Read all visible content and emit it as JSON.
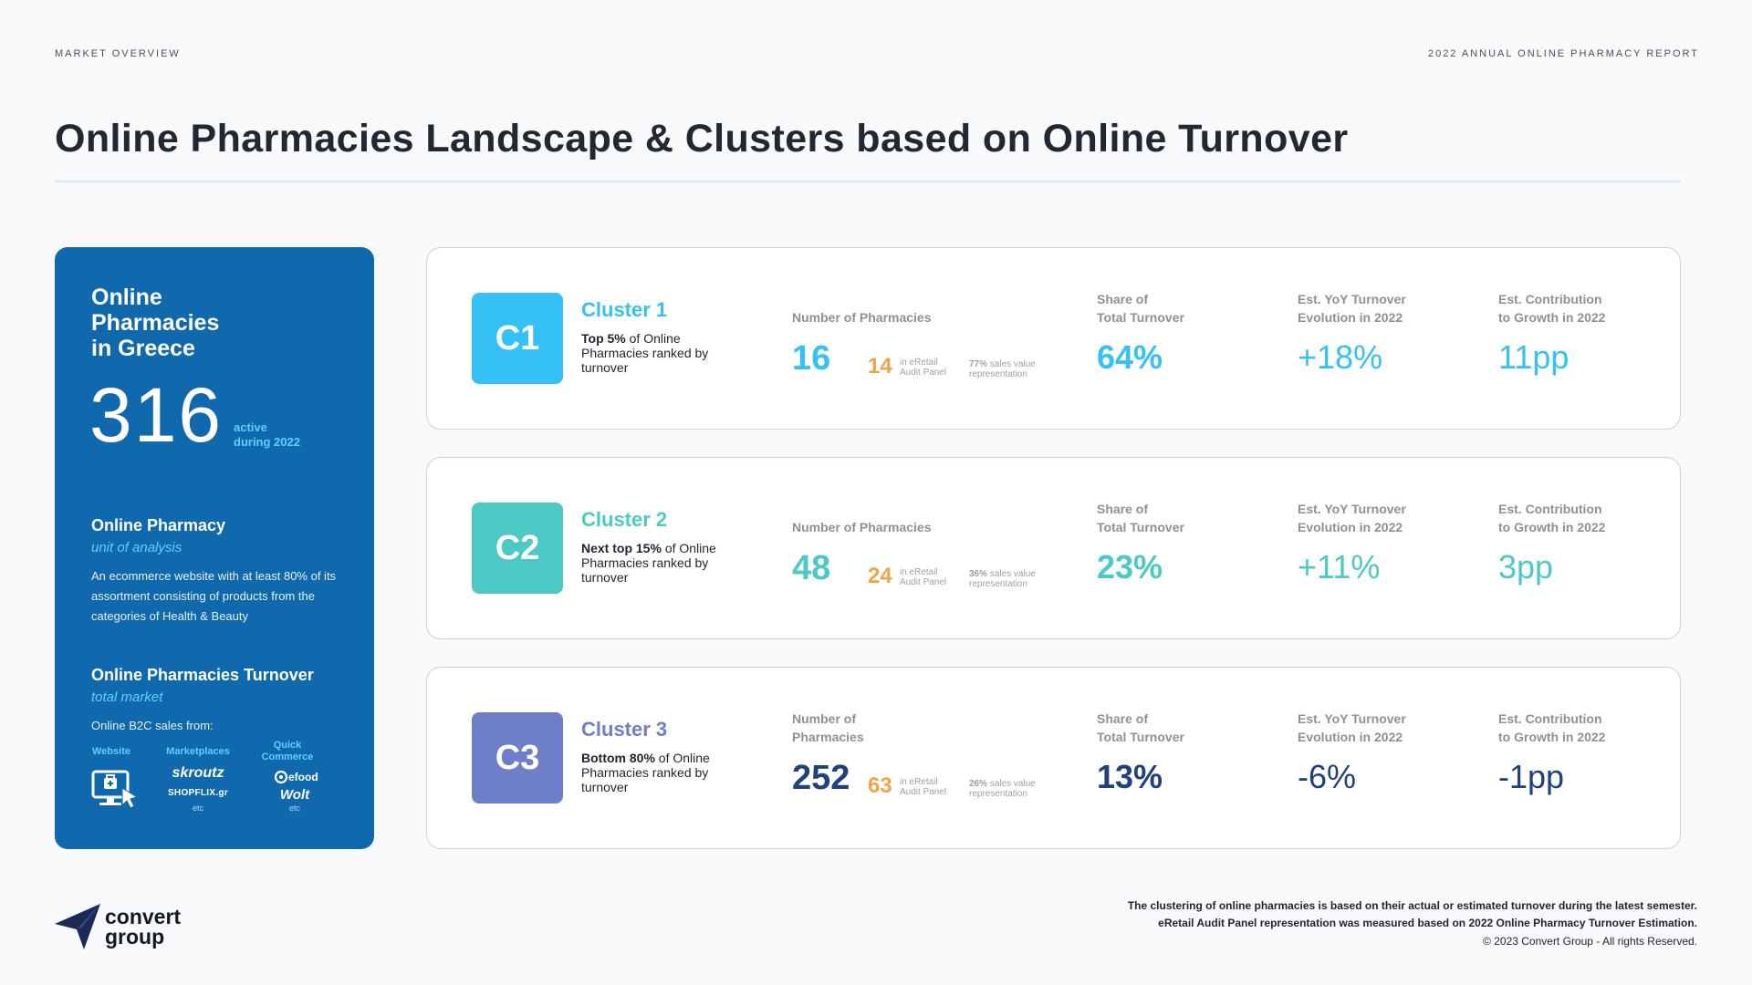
{
  "header": {
    "section": "MARKET OVERVIEW",
    "report": "2022 ANNUAL ONLINE PHARMACY REPORT",
    "title": "Online Pharmacies Landscape & Clusters based on Online Turnover"
  },
  "panel": {
    "heading": [
      "Online",
      "Pharmacies",
      "in Greece"
    ],
    "count": "316",
    "active_label": [
      "active",
      "during 2022"
    ],
    "unit_title": "Online Pharmacy",
    "unit_sub": "unit of analysis",
    "unit_desc": "An ecommerce website with at least 80% of its assortment consisting of products from the categories of Health & Beauty",
    "turnover_title": "Online Pharmacies Turnover",
    "turnover_sub": "total market",
    "b2c": "Online B2C sales from:",
    "channels": {
      "website": "Website",
      "marketplaces": "Marketplaces",
      "quick": [
        "Quick",
        "Commerce"
      ]
    },
    "brands": {
      "skroutz": "skroutz",
      "shopflix": "SHOPFLIX.gr",
      "efood": "efood",
      "wolt": "Wolt",
      "etc": "etc"
    }
  },
  "labels": {
    "share": [
      "Share of",
      "Total Turnover"
    ],
    "yoy": [
      "Est. YoY Turnover",
      "Evolution in 2022"
    ],
    "contrib": [
      "Est. Contribution",
      "to Growth in 2022"
    ],
    "panel_tag": [
      "in eRetail",
      "Audit Panel"
    ],
    "rep_suffix": "sales value representation",
    "num_one_line": "Number of Pharmacies",
    "num_two_line": [
      "Number of",
      "Pharmacies"
    ]
  },
  "clusters": [
    {
      "badge": "C1",
      "name": "Cluster 1",
      "desc_bold": "Top 5%",
      "desc_rest": "of Online Pharmacies ranked by turnover",
      "pharmacies": "16",
      "panel": "14",
      "rep": "77%",
      "share": "64%",
      "yoy": "+18%",
      "contrib": "11pp",
      "color": "#35c1f6"
    },
    {
      "badge": "C2",
      "name": "Cluster 2",
      "desc_bold": "Next top 15%",
      "desc_rest": "of Online Pharmacies ranked by turnover",
      "pharmacies": "48",
      "panel": "24",
      "rep": "36%",
      "share": "23%",
      "yoy": "+11%",
      "contrib": "3pp",
      "color": "#4cc9c4"
    },
    {
      "badge": "C3",
      "name": "Cluster 3",
      "desc_bold": "Bottom 80%",
      "desc_rest": "of Online Pharmacies ranked by turnover",
      "pharmacies": "252",
      "panel": "63",
      "rep": "26%",
      "share": "13%",
      "yoy": "-6%",
      "contrib": "-1pp",
      "color": "#6f7ec8",
      "value_color": "#22407a"
    }
  ],
  "footer": {
    "logo": [
      "convert",
      "group"
    ],
    "note1": "The clustering of online pharmacies is based on their actual or estimated turnover during the latest semester.",
    "note2": "eRetail Audit Panel representation was measured based on 2022 Online Pharmacy Turnover Estimation.",
    "copyright": "© 2023 Convert Group - All rights Reserved."
  }
}
